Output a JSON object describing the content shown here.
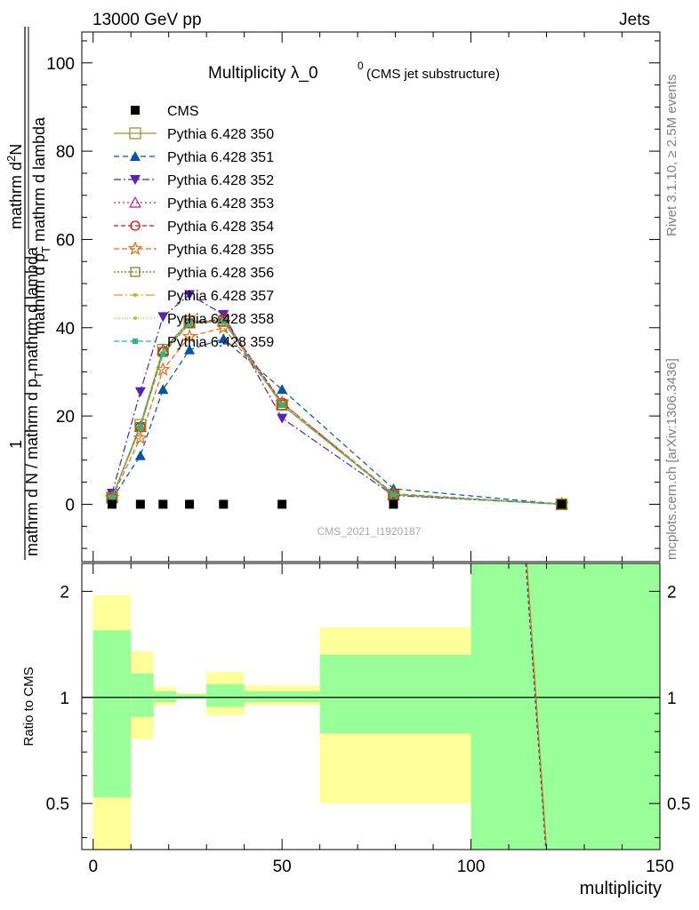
{
  "header": {
    "left": "13000 GeV pp",
    "right": "Jets"
  },
  "side_labels": {
    "rivet": "Rivet 3.1.10, ≥ 2.5M events",
    "mcplots": "mcplots.cern.ch [arXiv:1306.3436]"
  },
  "watermark": "CMS_2021_I1920187",
  "colors": {
    "yellow_band": "#ffff99",
    "green_band": "#99ff99",
    "data": "#000000"
  },
  "chart_data": [
    {
      "type": "line",
      "title": "Multiplicity λ_0",
      "title_superscript": "0",
      "subtitle": "(CMS jet substructure)",
      "ylabel_top": "1",
      "ylabel_bottom": "mathrm d N / mathrm d p",
      "ylabel_bottom_sub": "T",
      "ylabel_bottom_rest": "mathrm d lambda",
      "ylabel_frac_num": "mathrm d",
      "ylabel_frac_num_sup": "2",
      "ylabel_frac_num_rest": "N",
      "ylabel_frac_den": "mathrm d p",
      "ylabel_frac_den_sub": "T",
      "ylabel_frac_den_rest": " mathrm d lambda",
      "xlim": [
        -3,
        150
      ],
      "ylim": [
        -13,
        107
      ],
      "x_ticks": [
        0,
        50,
        100,
        150
      ],
      "y_ticks": [
        0,
        20,
        40,
        60,
        80,
        100
      ],
      "x_tick_labels": [
        "0",
        "50",
        "100",
        "150"
      ],
      "y_tick_labels": [
        "0",
        "20",
        "40",
        "60",
        "80",
        "100"
      ],
      "x": [
        5,
        12.5,
        18.5,
        25.5,
        34.5,
        50,
        79.5,
        124
      ],
      "series": [
        {
          "name": "CMS",
          "color": "#000000",
          "marker": "square-filled",
          "dash": "",
          "values": [
            0,
            0,
            0,
            0,
            0,
            0,
            0,
            0
          ]
        },
        {
          "name": "Pythia 6.428 350",
          "color": "#999933",
          "marker": "square-open",
          "dash": "",
          "values": [
            1.5,
            18,
            35,
            41.5,
            41.5,
            22.5,
            2.2,
            0
          ]
        },
        {
          "name": "Pythia 6.428 351",
          "color": "#0055aa",
          "marker": "triangle-up-filled",
          "dash": "6,4",
          "values": [
            1.2,
            11,
            26,
            35,
            37.5,
            26,
            3.5,
            0
          ]
        },
        {
          "name": "Pythia 6.428 352",
          "color": "#5522bb",
          "marker": "triangle-down-filled",
          "dash": "8,3,2,3",
          "values": [
            2.5,
            25.5,
            42.5,
            47.5,
            43,
            19.5,
            2,
            0
          ]
        },
        {
          "name": "Pythia 6.428 353",
          "color": "#bb2288",
          "marker": "triangle-up-open",
          "dash": "2,3",
          "values": [
            1.6,
            17.5,
            35,
            41,
            42,
            23,
            2.1,
            0
          ]
        },
        {
          "name": "Pythia 6.428 354",
          "color": "#dd1111",
          "marker": "circle-open",
          "dash": "5,3",
          "values": [
            1.6,
            17.5,
            34.5,
            41,
            42,
            23,
            2.2,
            0
          ]
        },
        {
          "name": "Pythia 6.428 355",
          "color": "#ee6611",
          "marker": "star-open",
          "dash": "6,3",
          "values": [
            1.5,
            15,
            30.5,
            38,
            40,
            23,
            2.4,
            0
          ]
        },
        {
          "name": "Pythia 6.428 356",
          "color": "#777711",
          "marker": "square-open-small",
          "dash": "2,2",
          "values": [
            1.6,
            17.5,
            34.5,
            41,
            41.5,
            22.5,
            2.2,
            0
          ]
        },
        {
          "name": "Pythia 6.428 357",
          "color": "#ccaa11",
          "marker": "dot",
          "dash": "10,3,2,3",
          "values": [
            1.6,
            17.5,
            34.5,
            41,
            41.5,
            22.5,
            2.2,
            0
          ]
        },
        {
          "name": "Pythia 6.428 358",
          "color": "#aacc22",
          "marker": "dot",
          "dash": "1,2",
          "values": [
            1.6,
            17.5,
            34.5,
            41,
            41.5,
            22.5,
            2.2,
            0
          ]
        },
        {
          "name": "Pythia 6.428 359",
          "color": "#22bb88",
          "marker": "square-filled-small",
          "dash": "6,3",
          "values": [
            1.6,
            17.5,
            34,
            41,
            41.5,
            22.5,
            2.2,
            0
          ]
        }
      ],
      "legend_position": "top-left"
    },
    {
      "type": "area",
      "ylabel": "Ratio to CMS",
      "xlabel": "multiplicity",
      "ylog": true,
      "xlim": [
        -3,
        150
      ],
      "ylim": [
        0.37,
        2.4
      ],
      "y_ticks": [
        0.5,
        1,
        2
      ],
      "y_tick_labels": [
        "0.5",
        "1",
        "2"
      ],
      "reference": 1,
      "bands": [
        {
          "x0": 0,
          "x1": 10,
          "yellow": [
            0.3,
            1.95
          ],
          "green": [
            0.52,
            1.55
          ]
        },
        {
          "x0": 10,
          "x1": 16,
          "yellow": [
            0.76,
            1.35
          ],
          "green": [
            0.88,
            1.17
          ]
        },
        {
          "x0": 16,
          "x1": 22,
          "yellow": [
            0.95,
            1.07
          ],
          "green": [
            0.97,
            1.04
          ]
        },
        {
          "x0": 22,
          "x1": 30,
          "yellow": [
            0.99,
            1.03
          ],
          "green": [
            0.99,
            1.02
          ]
        },
        {
          "x0": 30,
          "x1": 40,
          "yellow": [
            0.89,
            1.18
          ],
          "green": [
            0.94,
            1.09
          ]
        },
        {
          "x0": 40,
          "x1": 60,
          "yellow": [
            0.95,
            1.08
          ],
          "green": [
            0.97,
            1.04
          ]
        },
        {
          "x0": 60,
          "x1": 100,
          "yellow": [
            0.5,
            1.58
          ],
          "green": [
            0.79,
            1.32
          ]
        },
        {
          "x0": 100,
          "x1": 150,
          "yellow": [
            0.37,
            2.4
          ],
          "green": [
            0.37,
            2.4
          ]
        }
      ],
      "ratio_lines": [
        {
          "color": "#0055aa",
          "dash": "4,3",
          "x": [
            114.5,
            119.8
          ],
          "y": [
            2.4,
            0.37
          ]
        },
        {
          "color": "#ee6611",
          "dash": "",
          "x": [
            114.8,
            120.0
          ],
          "y": [
            2.4,
            0.37
          ]
        }
      ]
    }
  ]
}
